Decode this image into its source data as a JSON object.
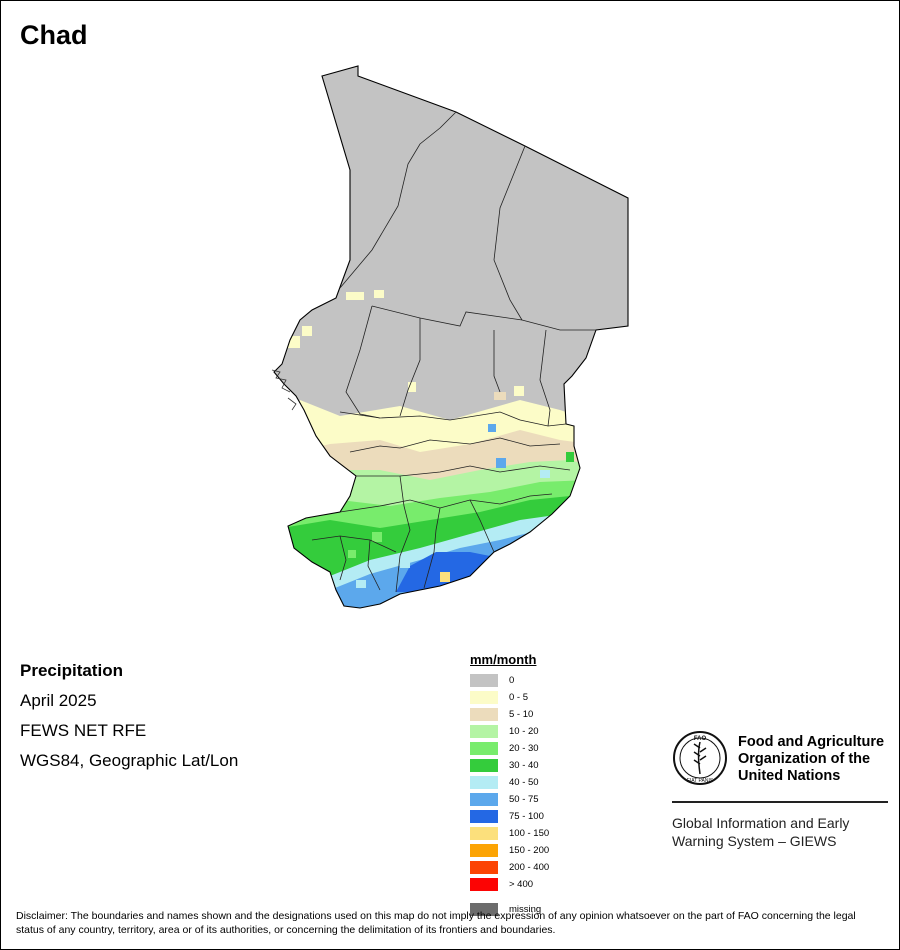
{
  "map_title": "Chad",
  "info": {
    "variable": "Precipitation",
    "period": "April 2025",
    "source": "FEWS NET RFE",
    "projection": "WGS84, Geographic Lat/Lon"
  },
  "legend": {
    "title": "mm/month",
    "items": [
      {
        "label": "0",
        "color": "#c3c3c3"
      },
      {
        "label": "0 - 5",
        "color": "#fcfcc8"
      },
      {
        "label": "5 - 10",
        "color": "#ecdcbc"
      },
      {
        "label": "10 - 20",
        "color": "#b4f4a4"
      },
      {
        "label": "20 - 30",
        "color": "#78ec6c"
      },
      {
        "label": "30 - 40",
        "color": "#34cc3c"
      },
      {
        "label": "40 - 50",
        "color": "#b4ecf4"
      },
      {
        "label": "50 - 75",
        "color": "#5ca8ec"
      },
      {
        "label": "75 - 100",
        "color": "#2468e4"
      },
      {
        "label": "100 - 150",
        "color": "#fce07c"
      },
      {
        "label": "150 - 200",
        "color": "#fca404"
      },
      {
        "label": "200 - 400",
        "color": "#fc4404"
      },
      {
        "label": "> 400",
        "color": "#fc0404"
      },
      {
        "label": "missing",
        "color": "#6c6c6c"
      }
    ]
  },
  "org": {
    "line1": "Food and Agriculture",
    "line2": "Organization of the",
    "line3": "United Nations",
    "emblem_text": "FAO",
    "emblem_motto": "FIAT PANIS",
    "giews_line1": "Global Information and Early",
    "giews_line2": "Warning System – GIEWS"
  },
  "disclaimer": "Disclaimer: The boundaries and names shown and the designations used on this map do not imply the expression of any opinion whatsoever on the part of FAO concerning the legal status of any country, territory, area or of its authorities, or concerning the delimitation of its frontiers and boundaries."
}
